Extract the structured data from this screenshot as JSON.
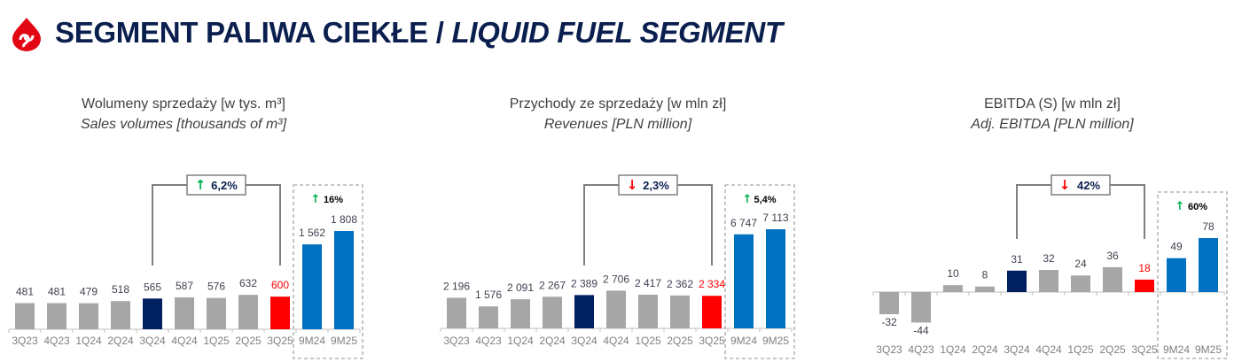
{
  "header": {
    "title_pl": "SEGMENT PALIWA CIEKŁE / ",
    "title_en": "LIQUID FUEL SEGMENT",
    "logo_icon": "drop-logo-icon"
  },
  "colors": {
    "grey": "#a6a6a6",
    "navy": "#002060",
    "red": "#ff0000",
    "blue": "#0070c0",
    "up": "#00b050",
    "down": "#ff0000"
  },
  "chart_data": [
    {
      "type": "bar",
      "title": "Wolumeny sprzedaży [w tys. m³]",
      "title_en": "Sales volumes [thousands of m³]",
      "categories": [
        "3Q23",
        "4Q23",
        "1Q24",
        "2Q24",
        "3Q24",
        "4Q24",
        "1Q25",
        "2Q25",
        "3Q25",
        "9M24",
        "9M25"
      ],
      "values": [
        481,
        481,
        479,
        518,
        565,
        587,
        576,
        632,
        600,
        1562,
        1808
      ],
      "labels": [
        "481",
        "481",
        "479",
        "518",
        "565",
        "587",
        "576",
        "632",
        "600",
        "1 562",
        "1 808"
      ],
      "quarter_change": {
        "label": "6,2%",
        "direction": "up"
      },
      "ytd_change": {
        "label": "16%",
        "direction": "up"
      }
    },
    {
      "type": "bar",
      "title": "Przychody ze sprzedaży [w mln zł]",
      "title_en": "Revenues [PLN million]",
      "categories": [
        "3Q23",
        "4Q23",
        "1Q24",
        "2Q24",
        "3Q24",
        "4Q24",
        "1Q25",
        "2Q25",
        "3Q25",
        "9M24",
        "9M25"
      ],
      "values": [
        2196,
        1576,
        2091,
        2267,
        2389,
        2706,
        2417,
        2362,
        2334,
        6747,
        7113
      ],
      "labels": [
        "2 196",
        "1 576",
        "2 091",
        "2 267",
        "2 389",
        "2 706",
        "2 417",
        "2 362",
        "2 334",
        "6 747",
        "7 113"
      ],
      "quarter_change": {
        "label": "2,3%",
        "direction": "down"
      },
      "ytd_change": {
        "label": "5,4%",
        "direction": "up"
      }
    },
    {
      "type": "bar",
      "title": "EBITDA (S) [w mln zł]",
      "title_en": "Adj. EBITDA [PLN million]",
      "categories": [
        "3Q23",
        "4Q23",
        "1Q24",
        "2Q24",
        "3Q24",
        "4Q24",
        "1Q25",
        "2Q25",
        "3Q25",
        "9M24",
        "9M25"
      ],
      "values": [
        -32,
        -44,
        10,
        8,
        31,
        32,
        24,
        36,
        18,
        49,
        78
      ],
      "labels": [
        "-32",
        "-44",
        "10",
        "8",
        "31",
        "32",
        "24",
        "36",
        "18",
        "49",
        "78"
      ],
      "quarter_change": {
        "label": "42%",
        "direction": "down"
      },
      "ytd_change": {
        "label": "60%",
        "direction": "up"
      }
    }
  ]
}
